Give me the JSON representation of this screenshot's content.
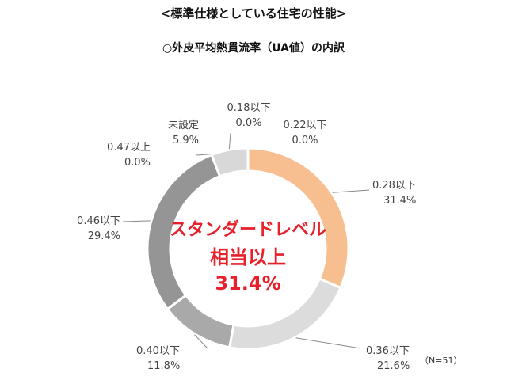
{
  "title": "<標準仕様としている住宅の性能>",
  "subtitle": "○外皮平均熱貫流率（UA値）の内訳",
  "chart_data": {
    "type": "pie",
    "donut": true,
    "slices": [
      {
        "label": "0.28以下",
        "value": 31.4,
        "value_text": "31.4%",
        "color": "#f7bf8f"
      },
      {
        "label": "0.36以下",
        "value": 21.6,
        "value_text": "21.6%",
        "color": "#dcdcdc"
      },
      {
        "label": "0.40以下",
        "value": 11.8,
        "value_text": "11.8%",
        "color": "#a9a9a9"
      },
      {
        "label": "0.46以下",
        "value": 29.4,
        "value_text": "29.4%",
        "color": "#959595"
      },
      {
        "label": "0.47以上",
        "value": 0.0,
        "value_text": "0.0%",
        "color": "#7a7a7a"
      },
      {
        "label": "未設定",
        "value": 5.9,
        "value_text": "5.9%",
        "color": "#d8d8d8"
      },
      {
        "label": "0.18以下",
        "value": 0.0,
        "value_text": "0.0%",
        "color": "#f2a36a"
      },
      {
        "label": "0.22以下",
        "value": 0.0,
        "value_text": "0.0%",
        "color": "#f4b07e"
      }
    ],
    "center_text": [
      "スタンダードレベル",
      "相当以上",
      "31.4%"
    ],
    "note": "（N=51）"
  }
}
